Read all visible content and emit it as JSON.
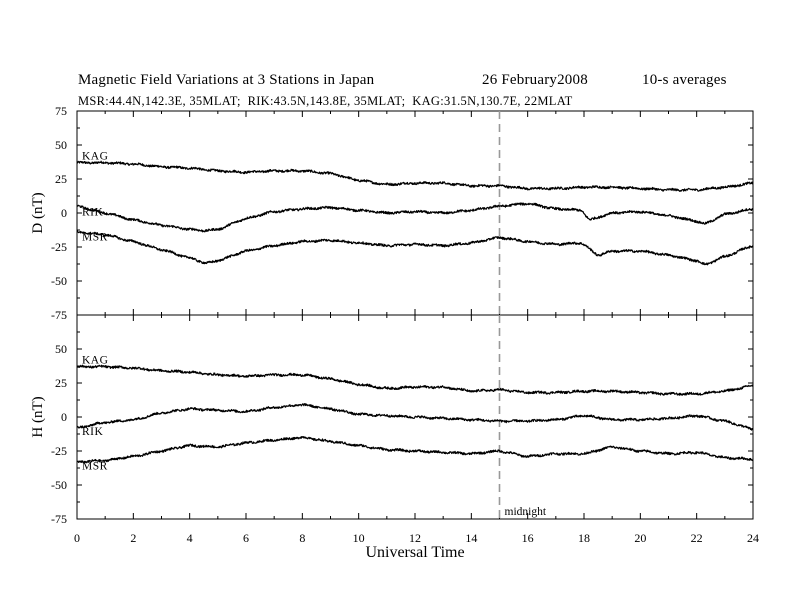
{
  "header": {
    "title": "Magnetic Field Variations at 3 Stations in Japan",
    "date": "26 February2008",
    "averaging": "10-s averages",
    "subtitle": "MSR:44.4N,142.3E, 35MLAT;  RIK:43.5N,143.8E, 35MLAT;  KAG:31.5N,130.7E, 22MLAT"
  },
  "chart_data": [
    {
      "type": "line",
      "panel": "top",
      "ylabel": "D (nT)",
      "ylim": [
        -75,
        75
      ],
      "yticks": [
        "75",
        "50",
        "25",
        "0",
        "-25",
        "-50",
        "-75"
      ],
      "xlim": [
        0,
        24
      ],
      "grid": false,
      "series": [
        {
          "name": "KAG",
          "color": "#000000",
          "x": [
            0,
            1,
            2,
            3,
            4,
            5,
            6,
            7,
            8,
            9,
            10,
            11,
            12,
            13,
            14,
            15,
            16,
            17,
            18,
            19,
            20,
            21,
            22,
            23,
            24
          ],
          "y": [
            37,
            37,
            36,
            34,
            33,
            31,
            30,
            31,
            31,
            29,
            24,
            21,
            22,
            22,
            20,
            20,
            18,
            18,
            19,
            19,
            18,
            17,
            17,
            19,
            22
          ]
        },
        {
          "name": "RIK",
          "color": "#000000",
          "x": [
            0,
            1,
            2,
            3,
            4,
            4.6,
            5,
            6,
            7,
            8,
            9,
            10,
            11,
            12,
            13,
            14,
            15,
            16,
            17,
            17.9,
            18.2,
            19,
            20,
            21,
            22,
            22.3,
            23,
            24
          ],
          "y": [
            5,
            0,
            -5,
            -9,
            -12,
            -13,
            -12,
            -4,
            1,
            3,
            4,
            2,
            0,
            1,
            0,
            2,
            5,
            7,
            3,
            2,
            -5,
            0,
            1,
            -2,
            -6,
            -8,
            -1,
            3
          ]
        },
        {
          "name": "MSR",
          "color": "#000000",
          "x": [
            0,
            1,
            2,
            3,
            4,
            4.6,
            5,
            6,
            7,
            8,
            9,
            10,
            11,
            12,
            13,
            14,
            15,
            16,
            17,
            17.9,
            18.5,
            19,
            20,
            21,
            22,
            22.3,
            23,
            24
          ],
          "y": [
            -14,
            -16,
            -21,
            -27,
            -33,
            -37,
            -35,
            -28,
            -24,
            -21,
            -20,
            -22,
            -24,
            -23,
            -24,
            -22,
            -18,
            -21,
            -23,
            -22,
            -31,
            -28,
            -28,
            -31,
            -35,
            -38,
            -32,
            -24
          ]
        }
      ]
    },
    {
      "type": "line",
      "panel": "bottom",
      "ylabel": "H (nT)",
      "xlabel": "Universal Time",
      "ylim": [
        -75,
        75
      ],
      "yticks": [
        "50",
        "25",
        "0",
        "-25",
        "-50",
        "-75"
      ],
      "xlim": [
        0,
        24
      ],
      "xticks": [
        "0",
        "2",
        "4",
        "6",
        "8",
        "10",
        "12",
        "14",
        "16",
        "18",
        "20",
        "22",
        "24"
      ],
      "grid": false,
      "series": [
        {
          "name": "KAG",
          "color": "#000000",
          "x": [
            0,
            1,
            2,
            3,
            4,
            5,
            6,
            7,
            8,
            9,
            10,
            11,
            12,
            13,
            14,
            15,
            16,
            17,
            18,
            19,
            20,
            21,
            22,
            23,
            24
          ],
          "y": [
            37,
            37,
            36,
            34,
            33,
            31,
            30,
            31,
            31,
            28,
            24,
            21,
            22,
            22,
            19,
            20,
            18,
            18,
            19,
            19,
            18,
            17,
            17,
            19,
            23
          ]
        },
        {
          "name": "RIK",
          "color": "#000000",
          "x": [
            0,
            1,
            2,
            3,
            4,
            5,
            6,
            7,
            8,
            9,
            10,
            11,
            12,
            13,
            14,
            15,
            16,
            17,
            18,
            19,
            20,
            21,
            22,
            23,
            24
          ],
          "y": [
            -8,
            -4,
            -2,
            3,
            6,
            5,
            4,
            7,
            9,
            6,
            2,
            1,
            0,
            -1,
            -2,
            -3,
            -3,
            -2,
            1,
            -2,
            -2,
            -1,
            1,
            -3,
            -9
          ]
        },
        {
          "name": "MSR",
          "color": "#000000",
          "x": [
            0,
            1,
            2,
            3,
            4,
            5,
            6,
            7,
            8,
            9,
            10,
            11,
            12,
            13,
            14,
            15,
            16,
            17,
            18,
            19,
            20,
            21,
            22,
            23,
            24
          ],
          "y": [
            -33,
            -32,
            -29,
            -25,
            -21,
            -22,
            -19,
            -17,
            -15,
            -18,
            -21,
            -24,
            -25,
            -26,
            -27,
            -25,
            -29,
            -27,
            -27,
            -22,
            -25,
            -27,
            -26,
            -30,
            -31
          ]
        }
      ]
    }
  ],
  "annotations": {
    "midnight_label": "midnight",
    "midnight_ut": 15,
    "midnight_style": "dashed gray vertical line"
  }
}
